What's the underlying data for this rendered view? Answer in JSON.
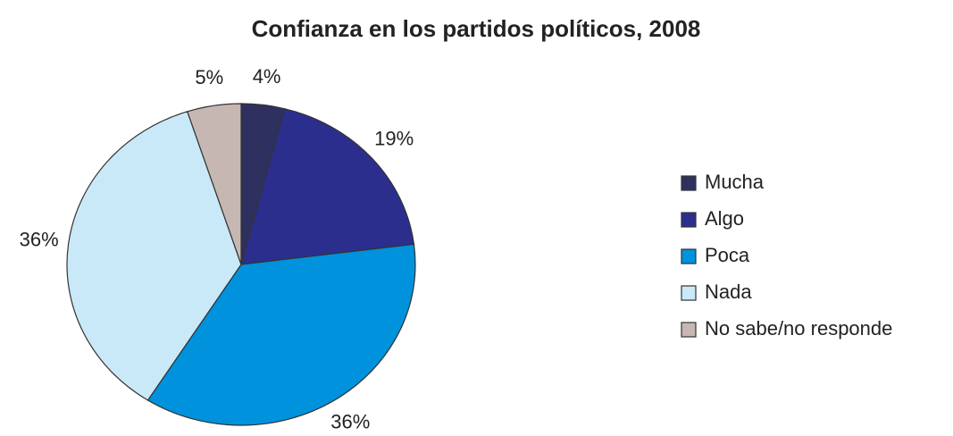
{
  "chart_data": {
    "type": "pie",
    "title": "Confianza en los partidos políticos, 2008",
    "categories": [
      "Mucha",
      "Algo",
      "Poca",
      "Nada",
      "No sabe/no responde"
    ],
    "values": [
      4,
      19,
      36,
      36,
      5
    ],
    "value_labels": [
      "4%",
      "19%",
      "36%",
      "36%",
      "5%"
    ],
    "colors": [
      "#2e305f",
      "#2b2e8c",
      "#0092dc",
      "#c9e9f9",
      "#c7b7b3"
    ],
    "legend": "right"
  }
}
